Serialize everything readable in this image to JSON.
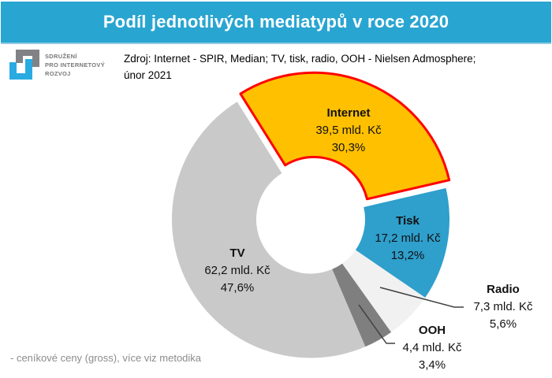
{
  "header": {
    "title": "Podíl jednotlivých mediatypů v roce 2020"
  },
  "logo": {
    "line1": "SDRUŽENÍ",
    "line2": "PRO INTERNETOVÝ",
    "line3": "ROZVOJ"
  },
  "source": {
    "line1": "Zdroj: Internet - SPIR, Median; TV, tisk, radio, OOH - Nielsen Admosphere;",
    "line2": "únor 2021"
  },
  "footnote": "- ceníkové ceny (gross), více viz metodika",
  "colors": {
    "header_bg": "#29A5D1",
    "internet_highlight_border": "#FF0000"
  },
  "chart_data": {
    "type": "pie",
    "subtype": "donut",
    "title": "Podíl jednotlivých mediatypů v roce 2020",
    "unit": "mld. Kč",
    "start_angle_deg": -32,
    "hole_ratio": 0.39,
    "legend_position": "none",
    "segments": [
      {
        "name": "Internet",
        "value": 39.5,
        "value_label": "39,5 mld. Kč",
        "pct": 30.3,
        "pct_label": "30,3%",
        "color": "#FFC000",
        "border_color": "#FF0000",
        "exploded": true
      },
      {
        "name": "Tisk",
        "value": 17.2,
        "value_label": "17,2 mld. Kč",
        "pct": 13.2,
        "pct_label": "13,2%",
        "color": "#2F9FCC",
        "exploded": false
      },
      {
        "name": "Radio",
        "value": 7.3,
        "value_label": "7,3 mld. Kč",
        "pct": 5.6,
        "pct_label": "5,6%",
        "color": "#F1F1F2",
        "exploded": false
      },
      {
        "name": "OOH",
        "value": 4.4,
        "value_label": "4,4 mld. Kč",
        "pct": 3.4,
        "pct_label": "3,4%",
        "color": "#7F7F7F",
        "exploded": false
      },
      {
        "name": "TV",
        "value": 62.2,
        "value_label": "62,2 mld. Kč",
        "pct": 47.6,
        "pct_label": "47,6%",
        "color": "#C9C9C9",
        "exploded": false
      }
    ]
  }
}
